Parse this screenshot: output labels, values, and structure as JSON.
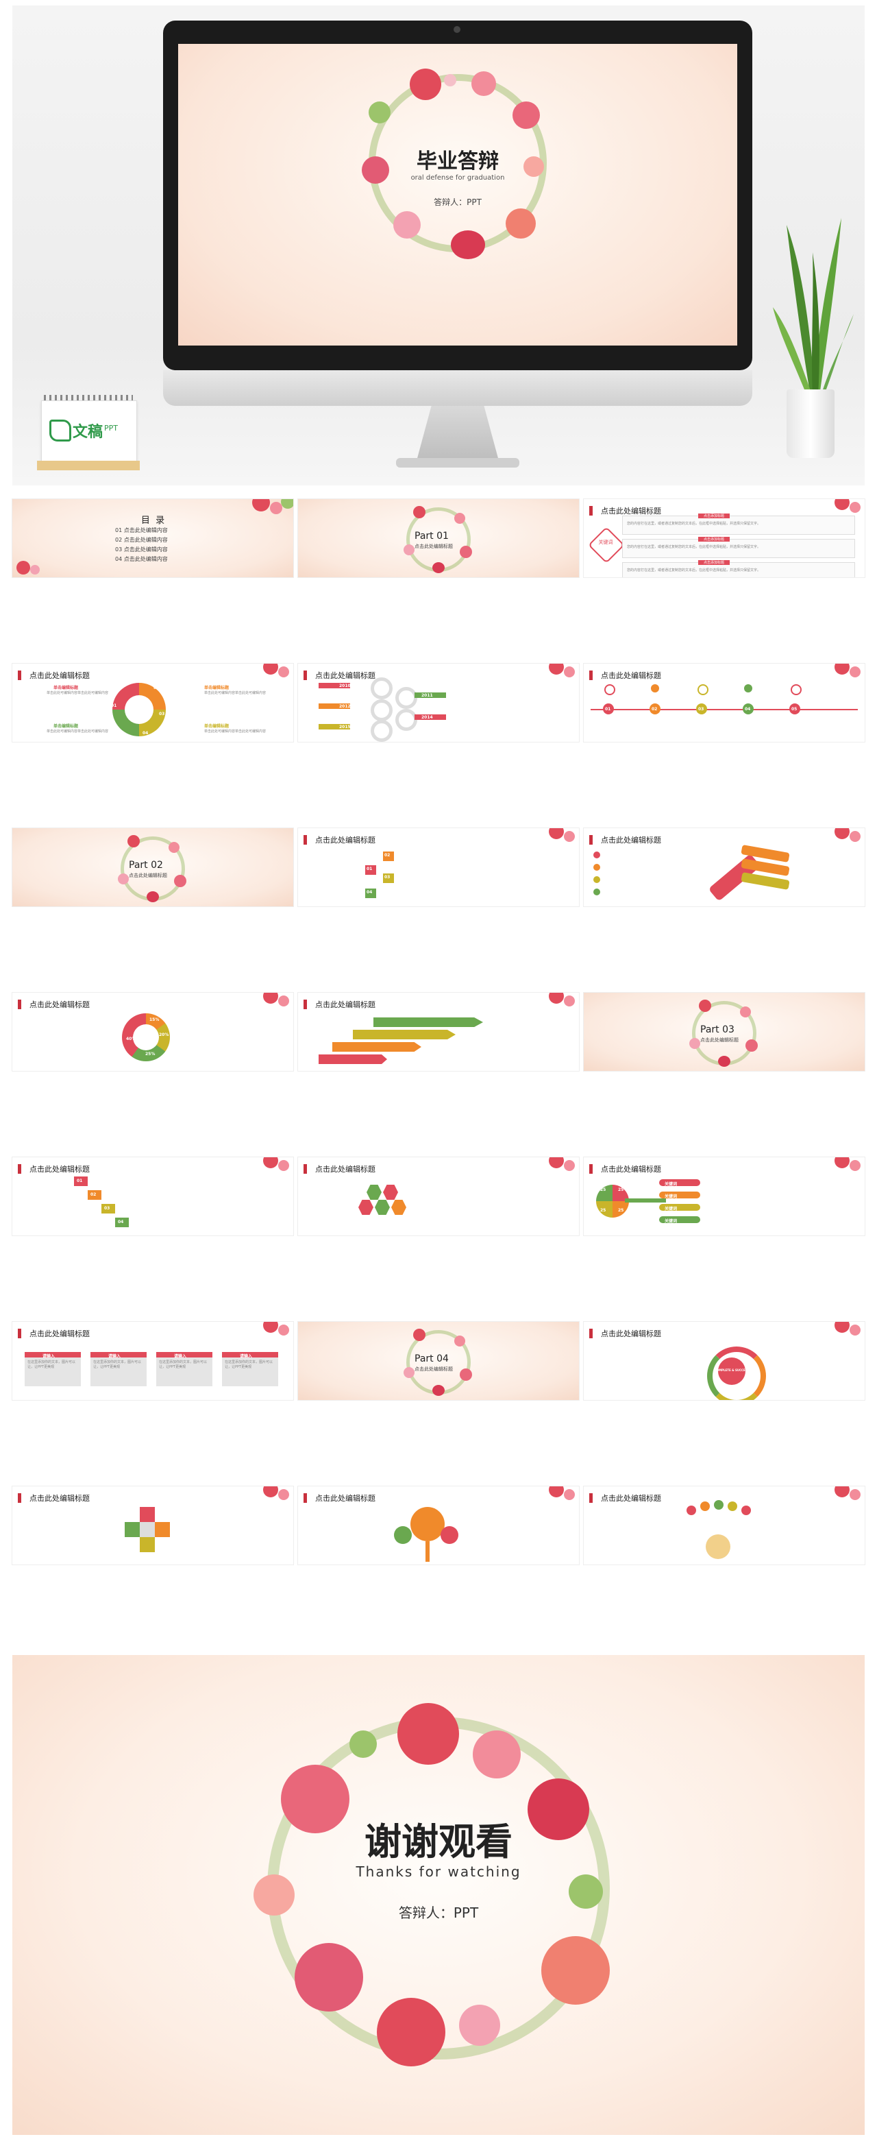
{
  "hero": {
    "title": "毕业答辩",
    "subtitle": "oral defense for graduation",
    "presenter": "答辩人：PPT",
    "brand": "文稿",
    "brand_sub": "PPT"
  },
  "toc": {
    "title": "目  录",
    "items": [
      "01 点击此处编辑内容",
      "02 点击此处编辑内容",
      "03 点击此处编辑内容",
      "04 点击此处编辑内容"
    ]
  },
  "slide_heading": "点击此处编辑标题",
  "parts": [
    {
      "title": "Part 01",
      "sub": "点击此处编辑标题"
    },
    {
      "title": "Part 02",
      "sub": "点击此处编辑标题"
    },
    {
      "title": "Part 03",
      "sub": "点击此处编辑标题"
    },
    {
      "title": "Part 04",
      "sub": "点击此处编辑标题"
    }
  ],
  "keyword": {
    "label": "关键词",
    "item_title": "点击添加标题",
    "body": "您的内容打在这里，或者通过复制您的文本后，在此框中选择粘贴，并选择只保留文字。"
  },
  "cycle": {
    "numbers": [
      "01",
      "02",
      "03",
      "04"
    ],
    "label": "单击编辑标题",
    "body": "单击此处可编辑内容单击此处可编辑内容"
  },
  "years": [
    "2010",
    "2011",
    "2012",
    "2014",
    "2015"
  ],
  "timeline_numbers": [
    "01",
    "02",
    "03",
    "04",
    "05"
  ],
  "stairs_numbers": [
    "01",
    "02",
    "03",
    "04"
  ],
  "donut": {
    "values": [
      "40%",
      "15%",
      "20%",
      "25%"
    ]
  },
  "arrows_numbers": [
    "01",
    "02",
    "03",
    "04"
  ],
  "petals": {
    "values": [
      "25",
      "25",
      "25",
      "25"
    ],
    "label": "关键词"
  },
  "columns": [
    "请输入",
    "请输入",
    "请输入",
    "请输入"
  ],
  "column_body": "在这里添加你的文本，图片可以让，让PPT更美观",
  "spiral_label": "COMPLETE & SUCCESS",
  "ending": {
    "title": "谢谢观看",
    "subtitle": "Thanks for watching",
    "presenter": "答辩人：PPT"
  },
  "colors": {
    "red": "#e14b5a",
    "orange": "#f08a2b",
    "yellow": "#c9b52a",
    "green": "#6aa84f",
    "dark_red": "#c9303d"
  }
}
